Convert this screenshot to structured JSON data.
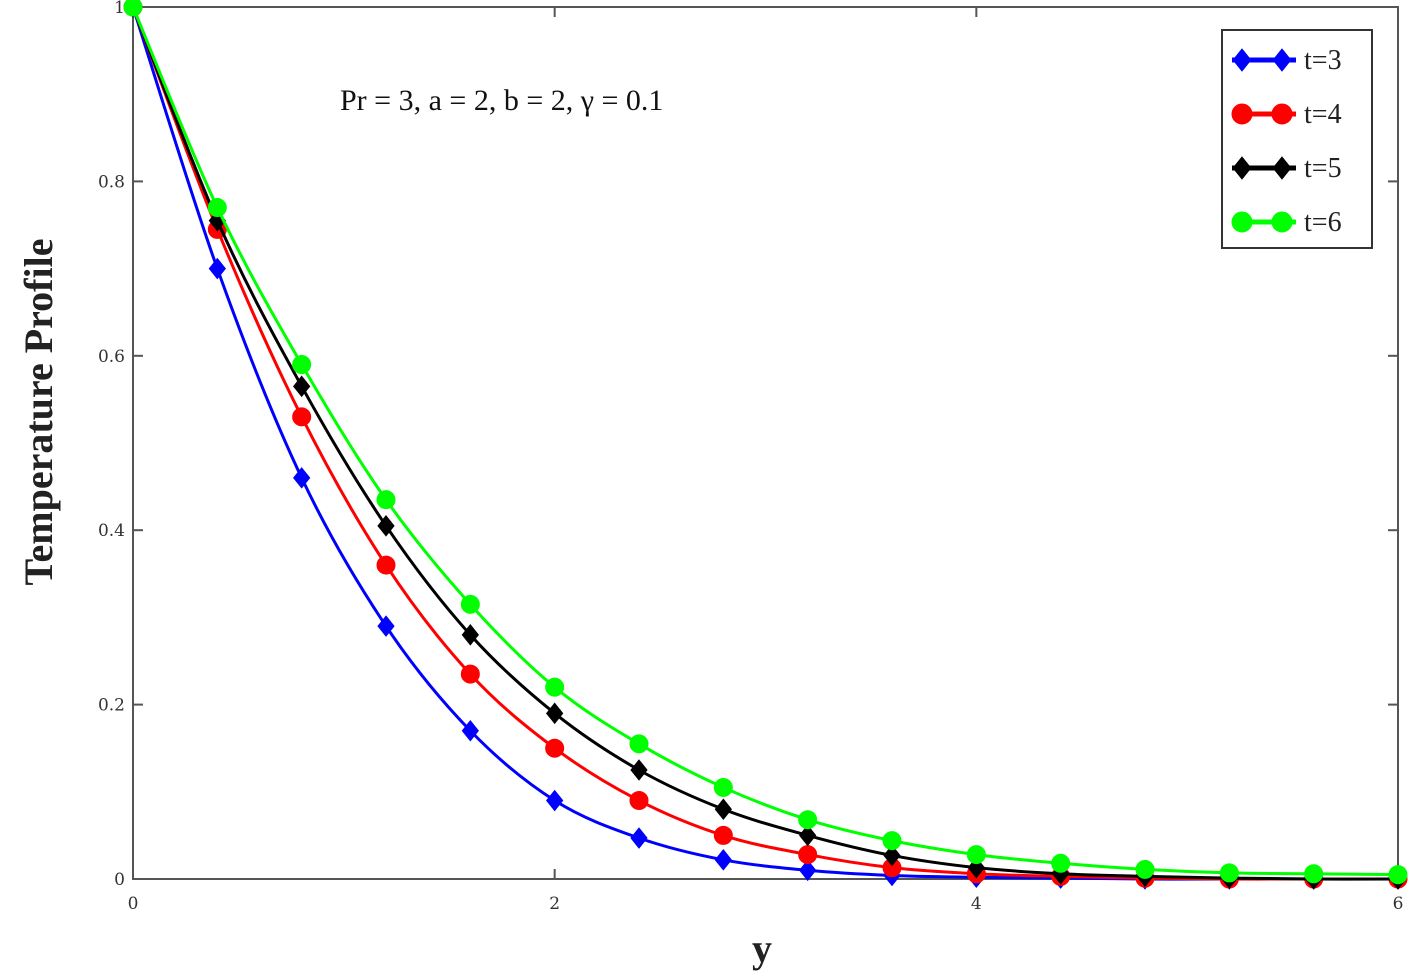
{
  "chart_data": {
    "type": "line",
    "title": "",
    "xlabel": "y",
    "ylabel": "Temperature Profile",
    "annotation": "Pr = 3, a = 2, b = 2, γ =   0.1",
    "xlim": [
      0,
      6
    ],
    "ylim": [
      0,
      1
    ],
    "xticks": [
      0,
      2,
      4,
      6
    ],
    "yticks": [
      0,
      0.2,
      0.4,
      0.6,
      0.8,
      1
    ],
    "xtick_labels": [
      "0",
      "2",
      "4",
      "6"
    ],
    "ytick_labels": [
      "0",
      "0.2",
      "0.4",
      "0.6",
      "0.8",
      "1"
    ],
    "grid": false,
    "legend_position": "top-right",
    "x": [
      0,
      0.4,
      0.8,
      1.2,
      1.6,
      2.0,
      2.4,
      2.8,
      3.2,
      3.6,
      4.0,
      4.4,
      4.8,
      5.2,
      5.6,
      6.0
    ],
    "series": [
      {
        "name": "t=3",
        "color": "#0000ff",
        "marker": "diamond",
        "values": [
          1.0,
          0.7,
          0.46,
          0.29,
          0.17,
          0.09,
          0.047,
          0.022,
          0.01,
          0.004,
          0.002,
          0.001,
          0.0,
          0.0,
          0.0,
          0.0
        ]
      },
      {
        "name": "t=4",
        "color": "#ff0000",
        "marker": "circle",
        "values": [
          1.0,
          0.745,
          0.53,
          0.36,
          0.235,
          0.15,
          0.09,
          0.05,
          0.028,
          0.013,
          0.006,
          0.003,
          0.001,
          0.0,
          0.0,
          0.0
        ]
      },
      {
        "name": "t=5",
        "color": "#000000",
        "marker": "diamond",
        "values": [
          1.0,
          0.755,
          0.565,
          0.405,
          0.28,
          0.19,
          0.125,
          0.08,
          0.05,
          0.027,
          0.013,
          0.006,
          0.003,
          0.001,
          0.0,
          0.0
        ]
      },
      {
        "name": "t=6",
        "color": "#00ff00",
        "marker": "circle",
        "values": [
          1.0,
          0.77,
          0.59,
          0.435,
          0.315,
          0.22,
          0.155,
          0.105,
          0.068,
          0.044,
          0.028,
          0.018,
          0.011,
          0.007,
          0.006,
          0.005
        ]
      }
    ]
  }
}
